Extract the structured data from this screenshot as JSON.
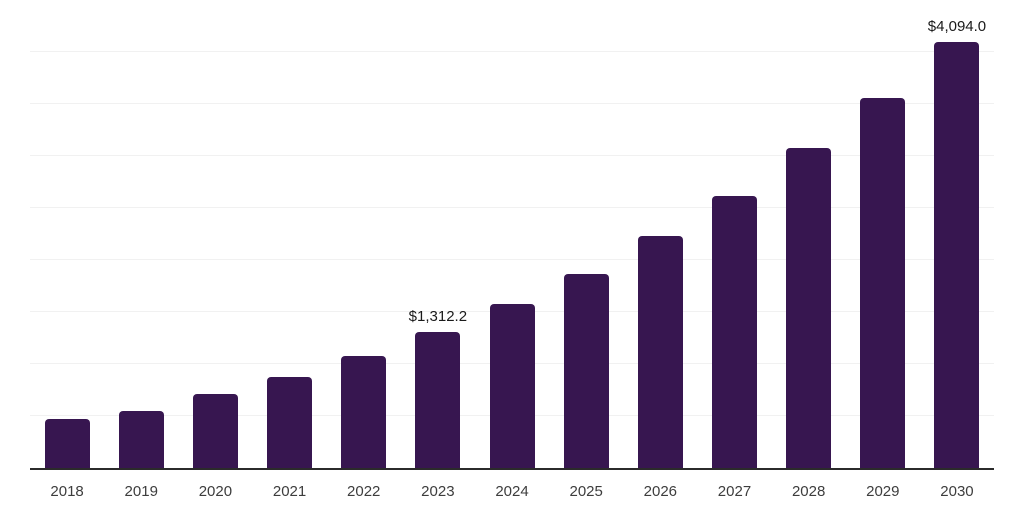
{
  "chart_data": {
    "type": "bar",
    "title": "",
    "xlabel": "",
    "ylabel": "",
    "categories": [
      "2018",
      "2019",
      "2020",
      "2021",
      "2022",
      "2023",
      "2024",
      "2025",
      "2026",
      "2027",
      "2028",
      "2029",
      "2030"
    ],
    "values": [
      470,
      547,
      712,
      879,
      1081,
      1312.2,
      1575,
      1870,
      2231,
      2620,
      3075,
      3557,
      4094
    ],
    "bar_labels": {
      "2023": "$1,312.2",
      "2030": "$4,094.0"
    },
    "value_prefix": "$",
    "ylim": [
      0,
      4500
    ],
    "ytick_step": 500,
    "y_axis_labels_visible": false,
    "grid": "horizontal",
    "legend": "none",
    "colors": {
      "bar": "#371650",
      "axis_line": "#2b2b2b",
      "gridline": "#f1f1f1",
      "tick_label": "#3d3d3d",
      "value_label": "#1a1a1a",
      "background": "#ffffff"
    }
  }
}
